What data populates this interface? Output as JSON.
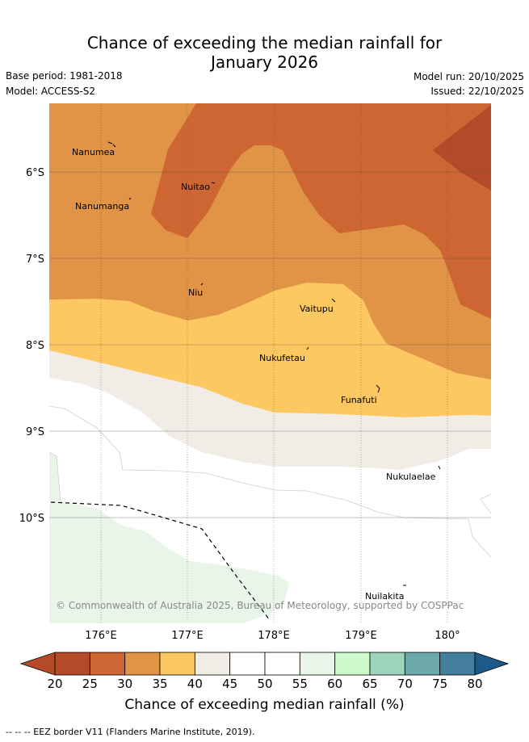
{
  "header": {
    "title_line1": "Chance of exceeding the median rainfall for",
    "title_line2": "January 2026",
    "base_period": "Base period: 1981-2018",
    "model": "Model: ACCESS-S2",
    "model_run": "Model run: 20/10/2025",
    "issued": "Issued: 22/10/2025"
  },
  "map": {
    "lat_labels": [
      "6°S",
      "7°S",
      "8°S",
      "9°S",
      "10°S"
    ],
    "lon_labels": [
      "176°E",
      "177°E",
      "178°E",
      "179°E",
      "180°"
    ],
    "places": [
      "Nanumea",
      "Nanumanga",
      "Nuitao",
      "Niu",
      "Vaitupu",
      "Nukufetau",
      "Funafuti",
      "Nukulaelae",
      "Nuilakita"
    ],
    "copyright": "© Commonwealth of Australia 2025, Bureau of Meteorology, supported by COSPPac"
  },
  "colorbar": {
    "ticks": [
      "20",
      "25",
      "30",
      "35",
      "40",
      "45",
      "50",
      "55",
      "60",
      "65",
      "70",
      "75",
      "80"
    ],
    "colors": [
      "#b44a28",
      "#cd6633",
      "#e19446",
      "#fdc862",
      "#f1ece6",
      "#ffffff",
      "#ffffff",
      "#eaf5e9",
      "#ccfacc",
      "#9cd3bd",
      "#6da9a8",
      "#437e9c",
      "#1b5a8b"
    ],
    "title": "Chance of exceeding median rainfall (%)"
  },
  "footer": {
    "eez_note": "-- -- -- EEZ border V11 (Flanders Marine Institute, 2019)."
  }
}
